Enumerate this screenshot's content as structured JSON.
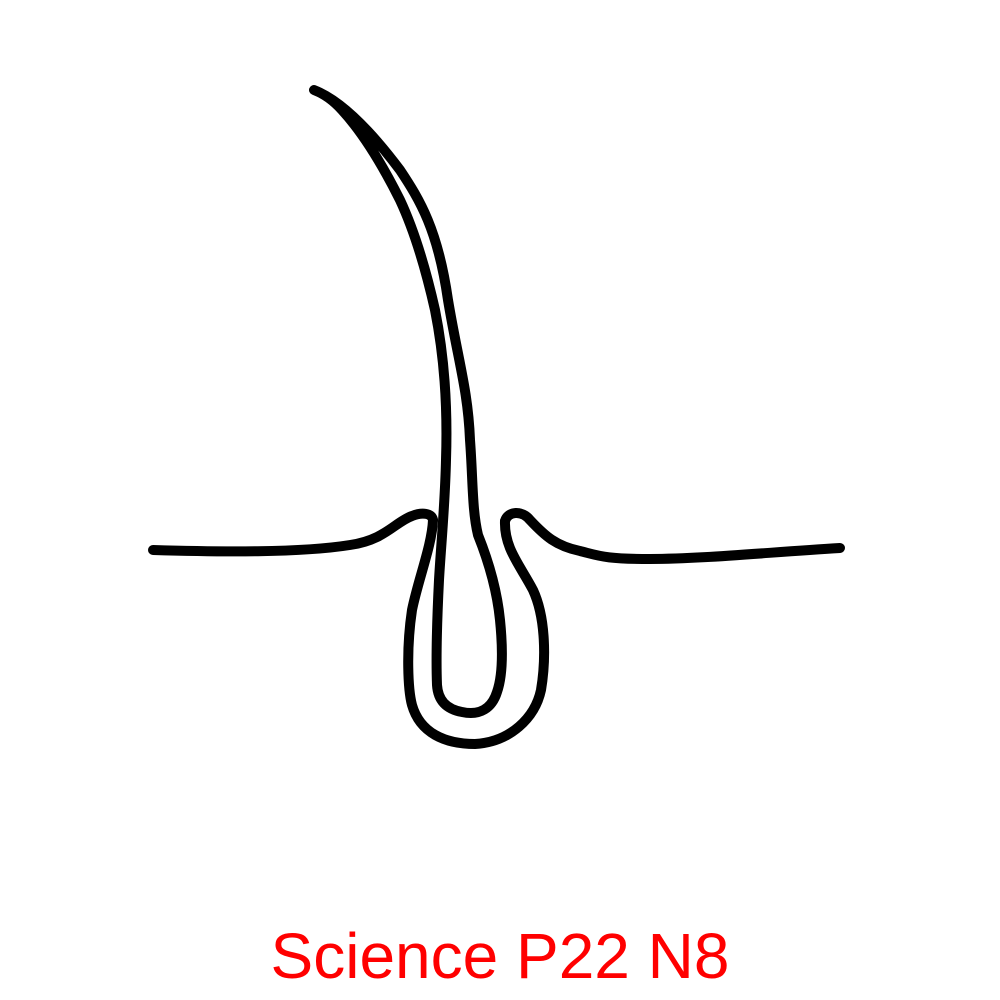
{
  "caption": {
    "text": "Science P22 N8",
    "color": "#ff0000"
  },
  "diagram": {
    "subject": "hair-follicle",
    "stroke_color": "#000000",
    "background_color": "#ffffff"
  }
}
